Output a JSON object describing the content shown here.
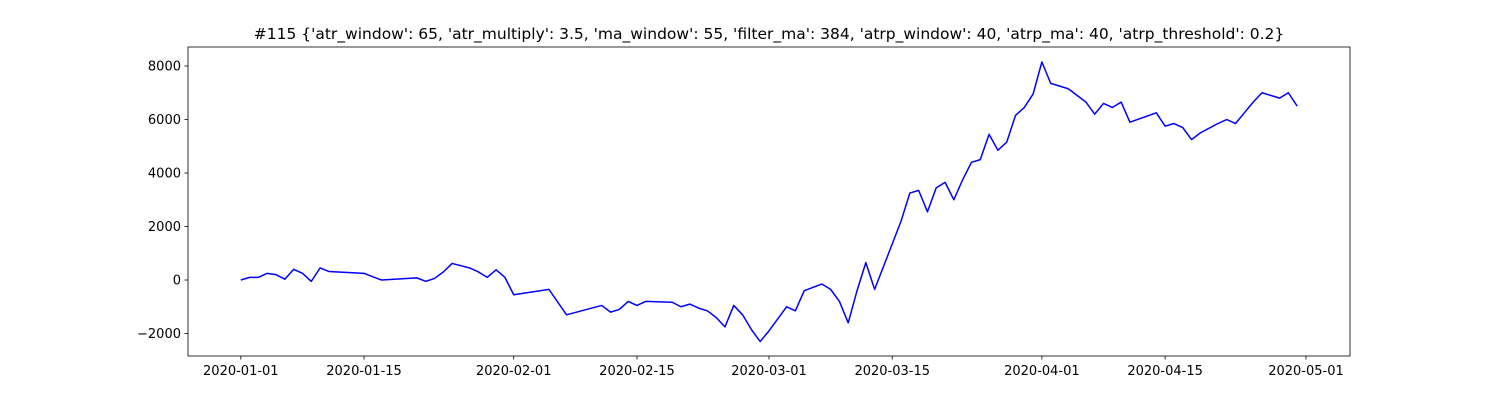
{
  "chart_data": {
    "type": "line",
    "title": "#115 {'atr_window': 65, 'atr_multiply': 3.5, 'ma_window': 55, 'filter_ma': 384, 'atrp_window': 40, 'atrp_ma': 40, 'atrp_threshold': 0.2}",
    "color": "#0000ff",
    "x": [
      "2020-01-01",
      "2020-01-02",
      "2020-01-03",
      "2020-01-04",
      "2020-01-05",
      "2020-01-06",
      "2020-01-07",
      "2020-01-08",
      "2020-01-09",
      "2020-01-10",
      "2020-01-11",
      "2020-01-15",
      "2020-01-16",
      "2020-01-17",
      "2020-01-21",
      "2020-01-22",
      "2020-01-23",
      "2020-01-24",
      "2020-01-25",
      "2020-01-27",
      "2020-01-28",
      "2020-01-29",
      "2020-01-30",
      "2020-01-31",
      "2020-02-01",
      "2020-02-05",
      "2020-02-07",
      "2020-02-11",
      "2020-02-12",
      "2020-02-13",
      "2020-02-14",
      "2020-02-15",
      "2020-02-16",
      "2020-02-19",
      "2020-02-20",
      "2020-02-21",
      "2020-02-22",
      "2020-02-23",
      "2020-02-24",
      "2020-02-25",
      "2020-02-26",
      "2020-02-27",
      "2020-02-28",
      "2020-02-29",
      "2020-03-01",
      "2020-03-03",
      "2020-03-04",
      "2020-03-05",
      "2020-03-07",
      "2020-03-08",
      "2020-03-09",
      "2020-03-10",
      "2020-03-11",
      "2020-03-12",
      "2020-03-13",
      "2020-03-16",
      "2020-03-17",
      "2020-03-18",
      "2020-03-19",
      "2020-03-20",
      "2020-03-21",
      "2020-03-22",
      "2020-03-23",
      "2020-03-24",
      "2020-03-25",
      "2020-03-26",
      "2020-03-27",
      "2020-03-28",
      "2020-03-29",
      "2020-03-30",
      "2020-03-31",
      "2020-04-01",
      "2020-04-02",
      "2020-04-04",
      "2020-04-06",
      "2020-04-07",
      "2020-04-08",
      "2020-04-09",
      "2020-04-10",
      "2020-04-11",
      "2020-04-14",
      "2020-04-15",
      "2020-04-16",
      "2020-04-17",
      "2020-04-18",
      "2020-04-19",
      "2020-04-21",
      "2020-04-22",
      "2020-04-23",
      "2020-04-24",
      "2020-04-25",
      "2020-04-26",
      "2020-04-28",
      "2020-04-29",
      "2020-04-30"
    ],
    "values": [
      0,
      100,
      100,
      250,
      200,
      30,
      400,
      250,
      -50,
      450,
      320,
      250,
      120,
      0,
      80,
      -50,
      60,
      300,
      620,
      450,
      300,
      100,
      380,
      100,
      -550,
      -350,
      -1300,
      -950,
      -1200,
      -1100,
      -800,
      -950,
      -800,
      -830,
      -1000,
      -900,
      -1050,
      -1150,
      -1400,
      -1750,
      -950,
      -1300,
      -1850,
      -2300,
      -1900,
      -1000,
      -1150,
      -400,
      -150,
      -350,
      -800,
      -1600,
      -400,
      650,
      -350,
      2200,
      3250,
      3350,
      2550,
      3450,
      3650,
      3000,
      3750,
      4400,
      4500,
      5450,
      4850,
      5150,
      6150,
      6450,
      6950,
      8150,
      7350,
      7150,
      6650,
      6200,
      6600,
      6450,
      6650,
      5900,
      6250,
      5750,
      5850,
      5700,
      5250,
      5500,
      5850,
      6000,
      5850,
      6250,
      6650,
      7000,
      6800,
      7000,
      6500
    ],
    "xlim": [
      "2019-12-26",
      "2020-05-06"
    ],
    "xticks": [
      "2020-01-01",
      "2020-01-15",
      "2020-02-01",
      "2020-02-15",
      "2020-03-01",
      "2020-03-15",
      "2020-04-01",
      "2020-04-15",
      "2020-05-01"
    ],
    "ylim": [
      -2840,
      8710
    ],
    "yticks": [
      {
        "value": -2000,
        "label": "−2000"
      },
      0,
      2000,
      4000,
      6000,
      8000
    ]
  }
}
